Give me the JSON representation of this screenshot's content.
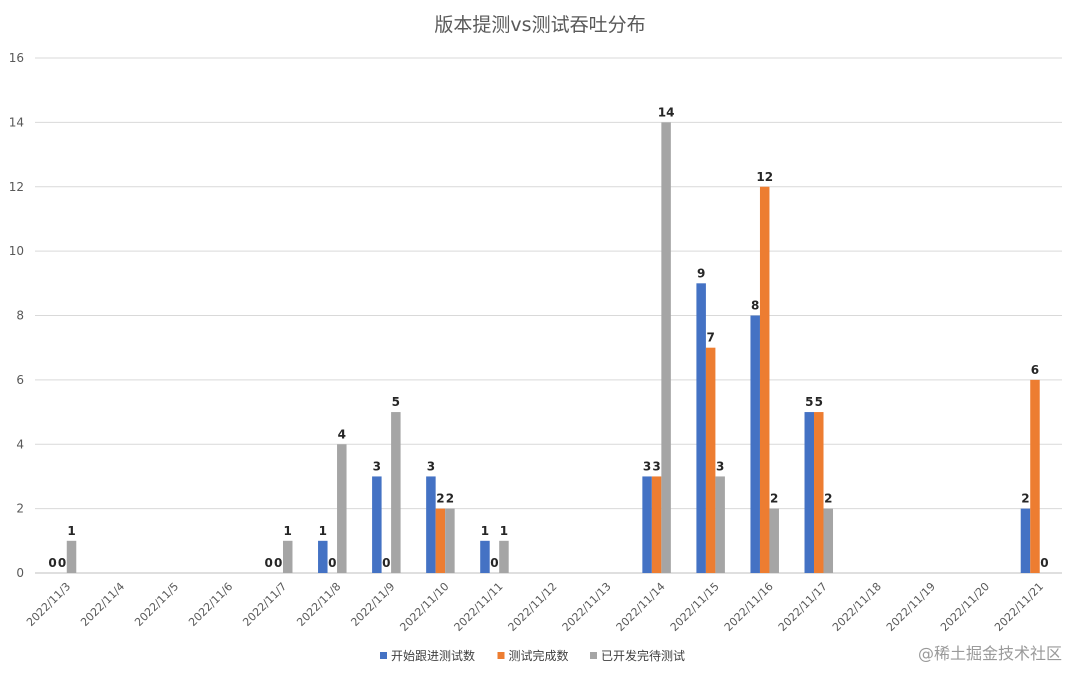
{
  "chart_data": {
    "type": "bar",
    "title": "版本提测vs测试吞吐分布",
    "xlabel": "",
    "ylabel": "",
    "ylim": [
      0,
      16
    ],
    "yticks": [
      0,
      2,
      4,
      6,
      8,
      10,
      12,
      14,
      16
    ],
    "grid": true,
    "legend_position": "bottom",
    "categories": [
      "2022/11/3",
      "2022/11/4",
      "2022/11/5",
      "2022/11/6",
      "2022/11/7",
      "2022/11/8",
      "2022/11/9",
      "2022/11/10",
      "2022/11/11",
      "2022/11/12",
      "2022/11/13",
      "2022/11/14",
      "2022/11/15",
      "2022/11/16",
      "2022/11/17",
      "2022/11/18",
      "2022/11/19",
      "2022/11/20",
      "2022/11/21"
    ],
    "series": [
      {
        "name": "开始跟进测试数",
        "color": "#4472C4",
        "values": [
          0,
          null,
          null,
          null,
          0,
          1,
          3,
          3,
          1,
          null,
          null,
          3,
          9,
          8,
          5,
          null,
          null,
          null,
          2
        ]
      },
      {
        "name": "测试完成数",
        "color": "#ED7D31",
        "values": [
          0,
          null,
          null,
          null,
          0,
          0,
          0,
          2,
          0,
          null,
          null,
          3,
          7,
          12,
          5,
          null,
          null,
          null,
          6
        ]
      },
      {
        "name": "已开发完待测试",
        "color": "#A5A5A5",
        "values": [
          1,
          null,
          null,
          null,
          1,
          4,
          5,
          2,
          1,
          null,
          null,
          14,
          3,
          2,
          2,
          null,
          null,
          null,
          0
        ]
      }
    ]
  },
  "watermark": "@稀土掘金技术社区"
}
